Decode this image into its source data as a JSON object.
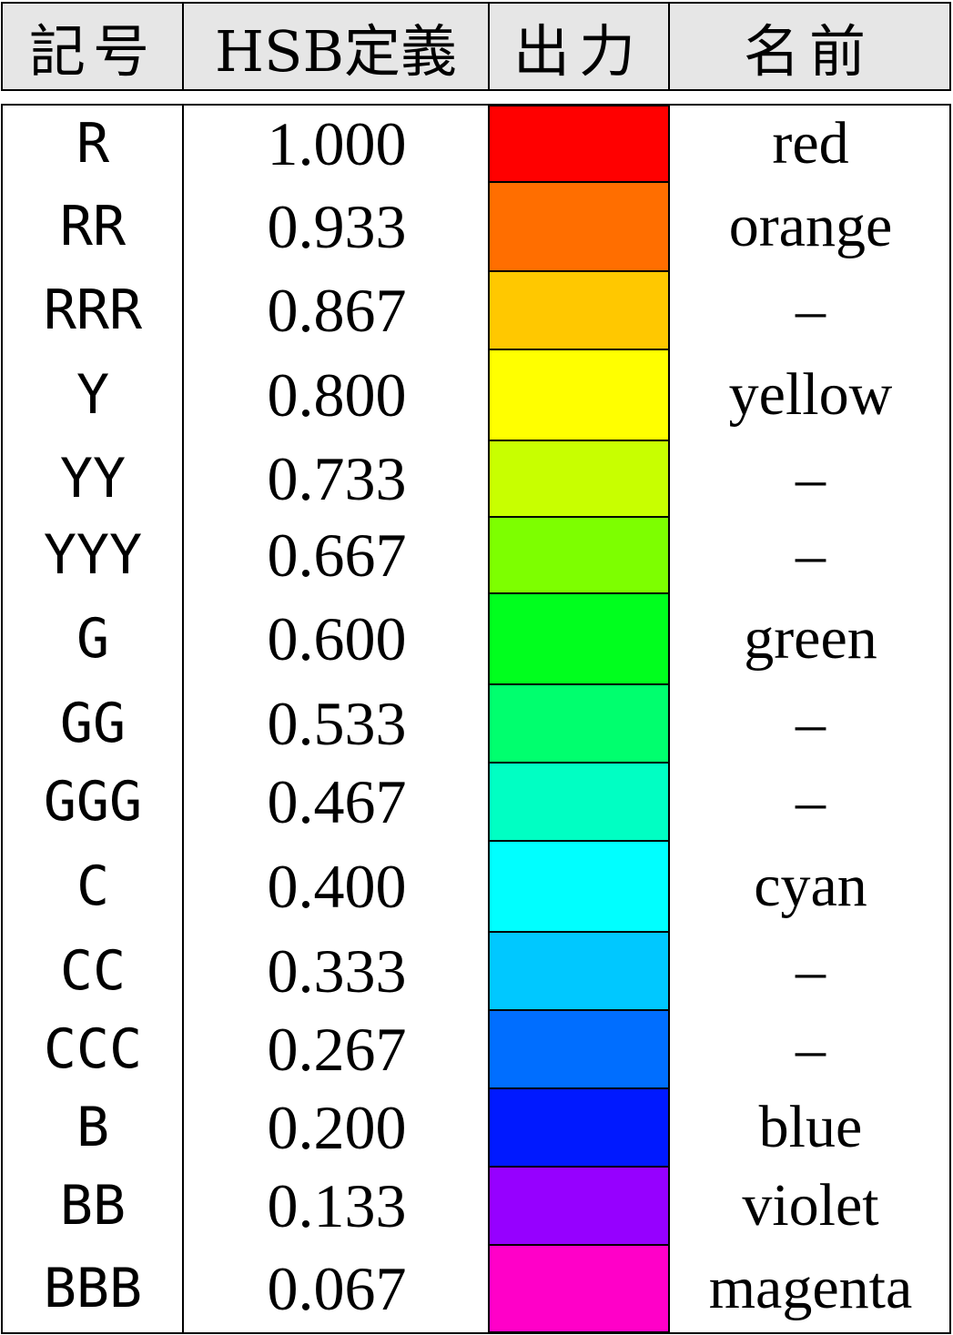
{
  "header": {
    "symbol": "記号",
    "hsb": "HSB定義",
    "output": "出力",
    "name": "名前"
  },
  "rows": [
    {
      "symbol": "R",
      "hsb": "1.000",
      "color": "#ff0000",
      "name": "red"
    },
    {
      "symbol": "RR",
      "hsb": "0.933",
      "color": "#ff6e00",
      "name": "orange"
    },
    {
      "symbol": "RRR",
      "hsb": "0.867",
      "color": "#ffc800",
      "name": "–"
    },
    {
      "symbol": "Y",
      "hsb": "0.800",
      "color": "#ffff00",
      "name": "yellow"
    },
    {
      "symbol": "YY",
      "hsb": "0.733",
      "color": "#c8ff00",
      "name": "–"
    },
    {
      "symbol": "YYY",
      "hsb": "0.667",
      "color": "#7dff00",
      "name": "–"
    },
    {
      "symbol": "G",
      "hsb": "0.600",
      "color": "#00ff1e",
      "name": "green"
    },
    {
      "symbol": "GG",
      "hsb": "0.533",
      "color": "#00ff6e",
      "name": "–"
    },
    {
      "symbol": "GGG",
      "hsb": "0.467",
      "color": "#00ffc3",
      "name": "–"
    },
    {
      "symbol": "C",
      "hsb": "0.400",
      "color": "#00ffff",
      "name": "cyan"
    },
    {
      "symbol": "CC",
      "hsb": "0.333",
      "color": "#00c8ff",
      "name": "–"
    },
    {
      "symbol": "CCC",
      "hsb": "0.267",
      "color": "#006eff",
      "name": "–"
    },
    {
      "symbol": "B",
      "hsb": "0.200",
      "color": "#0019ff",
      "name": "blue"
    },
    {
      "symbol": "BB",
      "hsb": "0.133",
      "color": "#9600ff",
      "name": "violet"
    },
    {
      "symbol": "BBB",
      "hsb": "0.067",
      "color": "#ff00c8",
      "name": "magenta"
    }
  ]
}
